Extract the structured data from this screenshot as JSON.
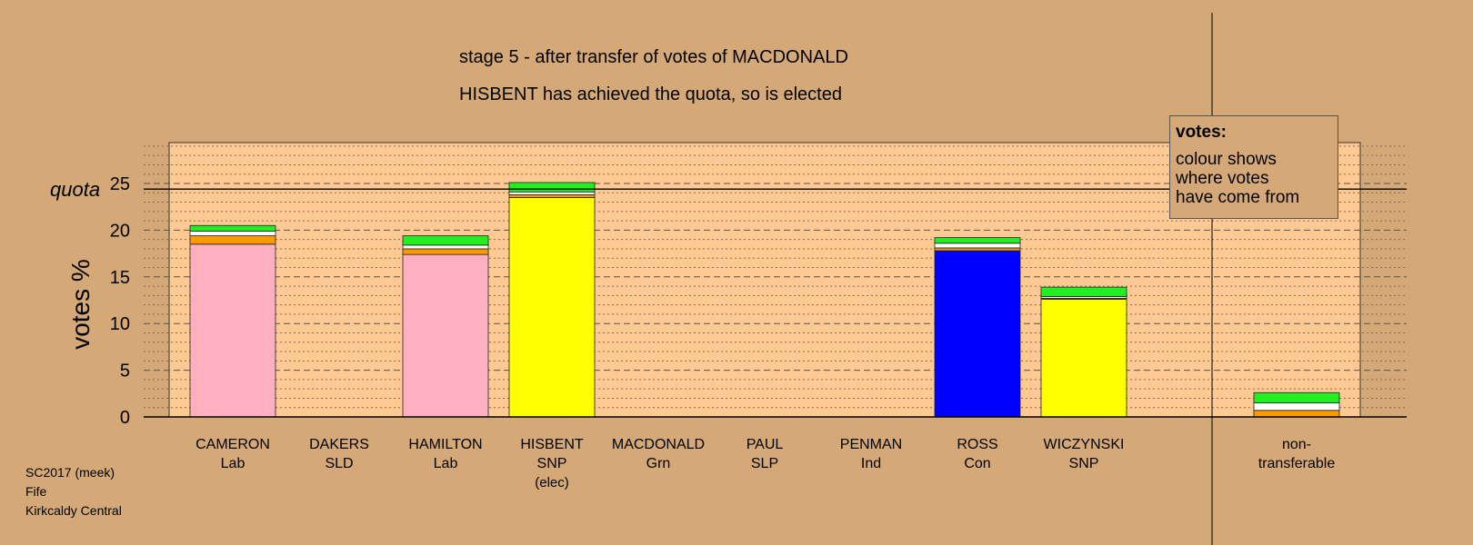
{
  "title_line1": "stage 5 - after transfer of votes of MACDONALD",
  "title_line2": "HISBENT has achieved the quota, so is elected",
  "footer": [
    "SC2017 (meek)",
    "Fife",
    "Kirkcaldy Central"
  ],
  "legend": {
    "title": "votes:",
    "lines": [
      "colour shows",
      "where votes",
      "have come from"
    ]
  },
  "quota_label": "quota",
  "colors": {
    "pink": "#ffb0c0",
    "yellow": "#ffff00",
    "blue": "#0000ff",
    "orange": "#ff9900",
    "white": "#ffffff",
    "green": "#22ee22",
    "plot_bg": "#ffc994",
    "page_bg": "#d4a977"
  },
  "chart_data": {
    "type": "bar",
    "stacked": true,
    "ylabel": "votes %",
    "ylim": [
      0,
      30
    ],
    "yticks": [
      0,
      5,
      10,
      15,
      20,
      25
    ],
    "quota": 24.4,
    "grid": true,
    "legend_position": "top-right",
    "categories": [
      {
        "name": "CAMERON",
        "party": "Lab"
      },
      {
        "name": "DAKERS",
        "party": "SLD"
      },
      {
        "name": "HAMILTON",
        "party": "Lab"
      },
      {
        "name": "HISBENT",
        "party": "SNP",
        "note": "(elec)"
      },
      {
        "name": "MACDONALD",
        "party": "Grn"
      },
      {
        "name": "PAUL",
        "party": "SLP"
      },
      {
        "name": "PENMAN",
        "party": "Ind"
      },
      {
        "name": "ROSS",
        "party": "Con"
      },
      {
        "name": "WICZYNSKI",
        "party": "SNP"
      },
      {
        "name": "non-",
        "party": "transferable"
      }
    ],
    "stacks": [
      [
        {
          "color": "pink",
          "value": 18.5
        },
        {
          "color": "orange",
          "value": 0.9
        },
        {
          "color": "white",
          "value": 0.5
        },
        {
          "color": "green",
          "value": 0.6
        }
      ],
      [],
      [
        {
          "color": "pink",
          "value": 17.4
        },
        {
          "color": "orange",
          "value": 0.6
        },
        {
          "color": "white",
          "value": 0.4
        },
        {
          "color": "green",
          "value": 1.0
        }
      ],
      [
        {
          "color": "yellow",
          "value": 23.5
        },
        {
          "color": "orange",
          "value": 0.3
        },
        {
          "color": "white",
          "value": 0.3
        },
        {
          "color": "green",
          "value": 1.0
        }
      ],
      [],
      [],
      [],
      [
        {
          "color": "blue",
          "value": 17.8
        },
        {
          "color": "orange",
          "value": 0.3
        },
        {
          "color": "white",
          "value": 0.5
        },
        {
          "color": "green",
          "value": 0.6
        }
      ],
      [
        {
          "color": "yellow",
          "value": 12.6
        },
        {
          "color": "orange",
          "value": 0.1
        },
        {
          "color": "white",
          "value": 0.2
        },
        {
          "color": "green",
          "value": 1.0
        }
      ],
      [
        {
          "color": "orange",
          "value": 0.7
        },
        {
          "color": "white",
          "value": 0.8
        },
        {
          "color": "green",
          "value": 1.1
        }
      ]
    ]
  }
}
